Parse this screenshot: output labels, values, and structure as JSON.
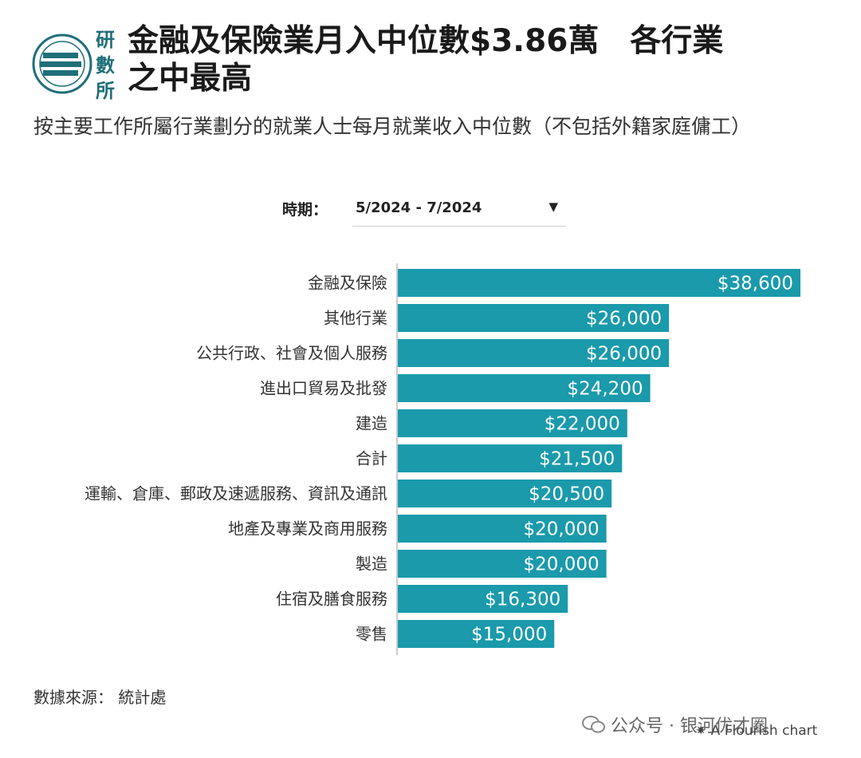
{
  "logo": {
    "text": "研數所",
    "color": "#1f6f78"
  },
  "header": {
    "title": "金融及保險業月入中位數$3.86萬　各行業\n之中最高",
    "subtitle": "按主要工作所屬行業劃分的就業人士每月就業收入中位數（不包括外籍家庭傭工）"
  },
  "filter": {
    "label": "時期：",
    "selected": "5/2024 - 7/2024",
    "icon": "chevron-down-icon"
  },
  "chart_data": {
    "type": "bar",
    "orientation": "horizontal",
    "bar_color": "#1a9aab",
    "categories": [
      "金融及保險",
      "其他行業",
      "公共行政、社會及個人服務",
      "進出口貿易及批發",
      "建造",
      "合計",
      "運輸、倉庫、郵政及速遞服務、資訊及通訊",
      "地產及專業及商用服務",
      "製造",
      "住宿及膳食服務",
      "零售"
    ],
    "values": [
      38600,
      26000,
      26000,
      24200,
      22000,
      21500,
      20500,
      20000,
      20000,
      16300,
      15000
    ],
    "data_labels": [
      "$38,600",
      "$26,000",
      "$26,000",
      "$24,200",
      "$22,000",
      "$21,500",
      "$20,500",
      "$20,000",
      "$20,000",
      "$16,300",
      "$15,000"
    ],
    "xlim": [
      0,
      38600
    ],
    "grid": false,
    "legend": false
  },
  "footer": {
    "source": "數據來源：  統計處",
    "wechat": "公众号 · 银河优才圈",
    "credit": "A Flourish chart"
  }
}
